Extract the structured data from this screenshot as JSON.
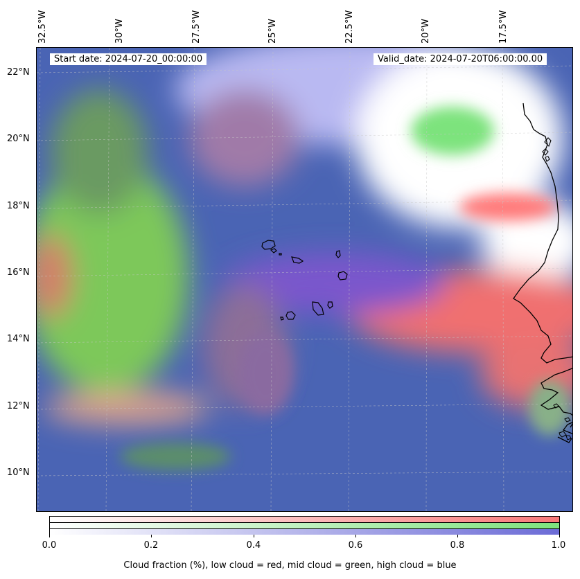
{
  "map": {
    "start_label": "Start date: 2024-07-20_00:00:00",
    "valid_label": "Valid_date: 2024-07-20T06:00:00.00",
    "longitude_labels": [
      "32.5°W",
      "30°W",
      "27.5°W",
      "25°W",
      "22.5°W",
      "20°W",
      "17.5°W"
    ],
    "latitude_labels": [
      "22°N",
      "20°N",
      "18°N",
      "16°N",
      "14°N",
      "12°N",
      "10°N"
    ]
  },
  "colorbar": {
    "ticks": [
      "0.0",
      "0.2",
      "0.4",
      "0.6",
      "0.8",
      "1.0"
    ],
    "title": "Cloud fraction (%), low cloud = red, mid cloud = green, high cloud = blue",
    "colors": {
      "low": "#f87878",
      "mid": "#7de37d",
      "high": "#6b6bd6"
    }
  }
}
